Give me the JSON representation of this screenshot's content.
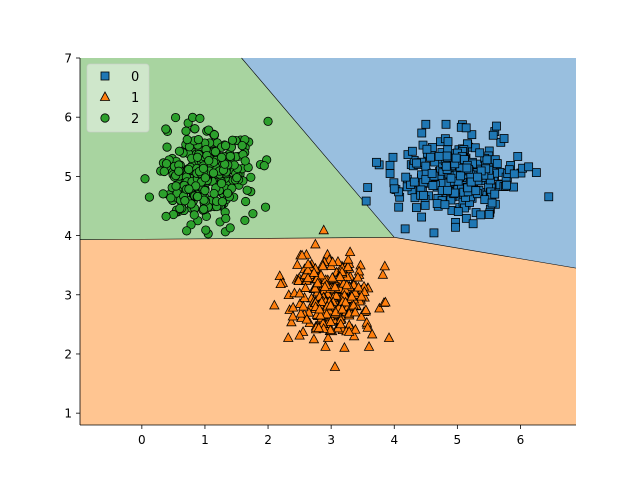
{
  "chart_data": {
    "type": "scatter",
    "title": "",
    "xlabel": "",
    "ylabel": "",
    "xlim": [
      -0.98,
      6.88
    ],
    "ylim": [
      0.8,
      7.0
    ],
    "x_ticks": [
      0,
      1,
      2,
      3,
      4,
      5,
      6
    ],
    "y_ticks": [
      1,
      2,
      3,
      4,
      5,
      6,
      7
    ],
    "grid": false,
    "legend_position": "top-left",
    "chart_subtype": "decision-regions",
    "regions": [
      {
        "class": "0",
        "color": "#99bfdf",
        "polygon": [
          [
            1.58,
            7.0
          ],
          [
            6.88,
            7.0
          ],
          [
            6.88,
            3.45
          ],
          [
            4.0,
            3.97
          ]
        ]
      },
      {
        "class": "1",
        "color": "#ffc591",
        "polygon": [
          [
            -0.98,
            3.93
          ],
          [
            4.0,
            3.97
          ],
          [
            6.88,
            3.45
          ],
          [
            6.88,
            0.8
          ],
          [
            -0.98,
            0.8
          ]
        ]
      },
      {
        "class": "2",
        "color": "#a8d4a0",
        "polygon": [
          [
            -0.98,
            7.0
          ],
          [
            1.58,
            7.0
          ],
          [
            4.0,
            3.97
          ],
          [
            -0.98,
            3.93
          ]
        ]
      }
    ],
    "series": [
      {
        "name": "0",
        "marker": "square",
        "color": "#1f77b4",
        "center": [
          5.0,
          4.98
        ],
        "spread": [
          0.45,
          0.32
        ],
        "count": 300,
        "points": [
          [
            4.5,
            5.88
          ],
          [
            4.82,
            5.88
          ],
          [
            5.14,
            5.82
          ],
          [
            5.62,
            5.85
          ],
          [
            5.74,
            5.64
          ],
          [
            4.0,
            4.79
          ],
          [
            4.07,
            4.48
          ],
          [
            5.89,
            4.82
          ],
          [
            5.78,
            4.85
          ],
          [
            4.49,
            4.51
          ],
          [
            5.55,
            4.55
          ],
          [
            5.37,
            4.35
          ],
          [
            4.97,
            4.14
          ],
          [
            5.25,
            4.2
          ]
        ]
      },
      {
        "name": "1",
        "marker": "triangle",
        "color": "#ff7f0e",
        "center": [
          3.0,
          2.95
        ],
        "spread": [
          0.32,
          0.33
        ],
        "count": 300,
        "points": [
          [
            2.75,
            3.85
          ],
          [
            3.3,
            3.72
          ],
          [
            2.2,
            3.18
          ],
          [
            2.1,
            2.82
          ],
          [
            3.85,
            3.48
          ],
          [
            3.86,
            2.87
          ],
          [
            3.06,
            1.78
          ],
          [
            3.6,
            2.12
          ],
          [
            2.32,
            2.27
          ],
          [
            2.5,
            2.31
          ],
          [
            2.91,
            2.12
          ],
          [
            3.65,
            2.33
          ]
        ]
      },
      {
        "name": "2",
        "marker": "circle",
        "color": "#2ca02c",
        "center": [
          0.98,
          5.0
        ],
        "spread": [
          0.33,
          0.37
        ],
        "count": 300,
        "points": [
          [
            0.92,
            5.98
          ],
          [
            2.0,
            5.93
          ],
          [
            0.38,
            5.8
          ],
          [
            1.59,
            5.52
          ],
          [
            1.88,
            5.2
          ],
          [
            1.94,
            5.18
          ],
          [
            0.05,
            4.96
          ],
          [
            0.12,
            4.65
          ],
          [
            0.71,
            4.08
          ],
          [
            1.4,
            4.13
          ],
          [
            1.76,
            4.37
          ],
          [
            1.96,
            4.48
          ],
          [
            1.33,
            4.29
          ]
        ]
      }
    ]
  }
}
